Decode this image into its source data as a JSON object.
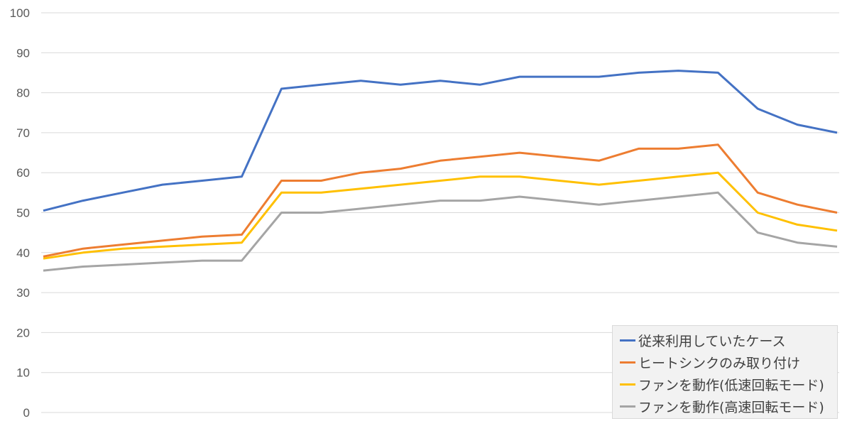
{
  "chart_data": {
    "type": "line",
    "title": "",
    "xlabel": "",
    "ylabel": "",
    "ylim": [
      0,
      100
    ],
    "yticks": [
      0,
      10,
      20,
      30,
      40,
      50,
      60,
      70,
      80,
      90,
      100
    ],
    "grid": "horizontal",
    "legend_position": "bottom-right",
    "x_description": "sample index (no x-axis labels shown)",
    "x": [
      0,
      5,
      10,
      15,
      20,
      25,
      30,
      35,
      40,
      45,
      50,
      55,
      60,
      65,
      70,
      75,
      80,
      85,
      90,
      95,
      100
    ],
    "series": [
      {
        "name": "従来利用していたケース",
        "color": "#4472c4",
        "values": [
          50.5,
          53,
          55,
          57,
          58,
          59,
          81,
          82,
          83,
          82,
          83,
          82,
          84,
          84,
          84,
          85,
          85.5,
          85,
          76,
          72,
          70
        ]
      },
      {
        "name": "ヒートシンクのみ取り付け",
        "color": "#ed7d31",
        "values": [
          39,
          41,
          42,
          43,
          44,
          44.5,
          58,
          58,
          60,
          61,
          63,
          64,
          65,
          64,
          63,
          66,
          66,
          67,
          55,
          52,
          50
        ]
      },
      {
        "name": "ファンを動作(低速回転モード)",
        "color": "#ffc000",
        "values": [
          38.5,
          40,
          41,
          41.5,
          42,
          42.5,
          55,
          55,
          56,
          57,
          58,
          59,
          59,
          58,
          57,
          58,
          59,
          60,
          50,
          47,
          45.5
        ]
      },
      {
        "name": "ファンを動作(高速回転モード)",
        "color": "#a5a5a5",
        "values": [
          35.5,
          36.5,
          37,
          37.5,
          38,
          38,
          50,
          50,
          51,
          52,
          53,
          53,
          54,
          53,
          52,
          53,
          54,
          55,
          45,
          42.5,
          41.5
        ]
      }
    ]
  }
}
